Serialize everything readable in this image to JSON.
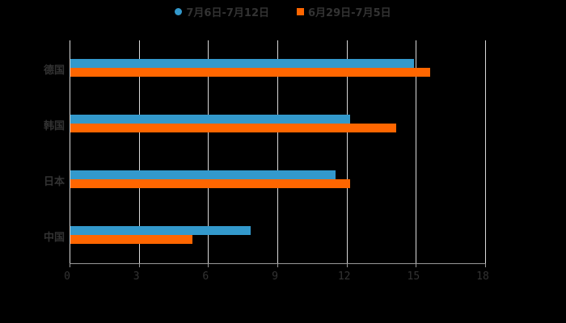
{
  "chart_data": {
    "type": "bar",
    "orientation": "horizontal",
    "categories": [
      "德国",
      "韩国",
      "日本",
      "中国"
    ],
    "series": [
      {
        "name": "7月6日-7月12日",
        "color": "#3399cc",
        "values": [
          14.9,
          12.1,
          11.5,
          7.8
        ]
      },
      {
        "name": "6月29日-7月5日",
        "color": "#ff6600",
        "values": [
          15.6,
          14.1,
          12.1,
          5.3
        ]
      }
    ],
    "title": "",
    "xlabel": "",
    "ylabel": "",
    "xlim": [
      0,
      18
    ],
    "xticks": [
      "0",
      "3",
      "6",
      "9",
      "12",
      "15",
      "18"
    ],
    "grid": true,
    "legend_position": "top"
  },
  "legend": [
    {
      "label": "7月6日-7月12日",
      "color": "#3399cc",
      "marker": "circle"
    },
    {
      "label": "6月29日-7月5日",
      "color": "#ff6600",
      "marker": "square"
    }
  ],
  "colors": {
    "background": "#000000",
    "text": "#333333",
    "grid": "#d9d9d9"
  }
}
